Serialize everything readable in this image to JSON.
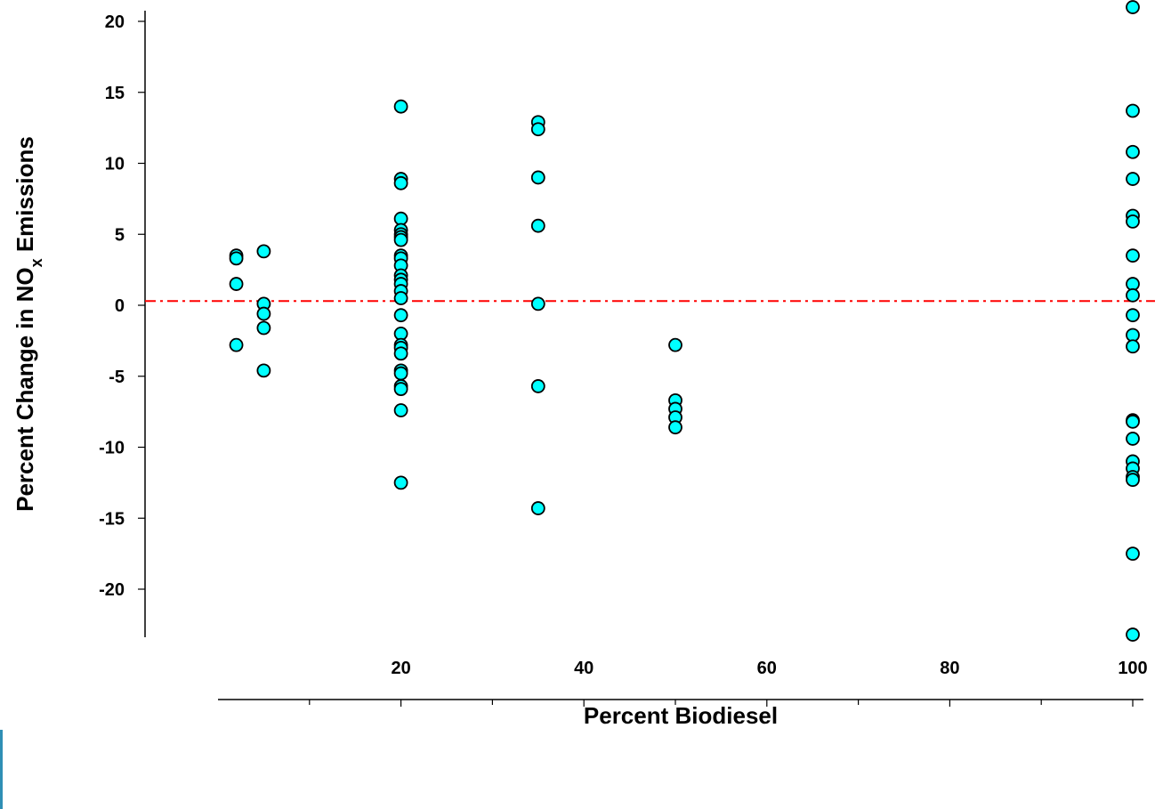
{
  "chart_data": {
    "type": "scatter",
    "xlabel": "Percent Biodiesel",
    "ylabel_parts": {
      "before": "Percent Change in NO",
      "subscript": "x",
      "after": " Emissions"
    },
    "xlim": [
      0,
      100
    ],
    "ylim": [
      -23,
      21
    ],
    "x_ticks": [
      20,
      40,
      60,
      80,
      100
    ],
    "x_minor_ticks": [
      10,
      30,
      50,
      70,
      90
    ],
    "y_ticks": [
      -20,
      -15,
      -10,
      -5,
      0,
      5,
      10,
      15,
      20
    ],
    "reference_line": {
      "y": 0.3,
      "style": "dash-dot",
      "color": "#ff0000"
    },
    "marker_color": "#00ffff",
    "grid": false,
    "series": [
      {
        "points": [
          [
            2,
            3.5
          ],
          [
            2,
            3.3
          ],
          [
            2,
            1.5
          ],
          [
            2,
            -2.8
          ],
          [
            5,
            3.8
          ],
          [
            5,
            0.1
          ],
          [
            5,
            -0.6
          ],
          [
            5,
            -1.6
          ],
          [
            5,
            -4.6
          ],
          [
            20,
            14.0
          ],
          [
            20,
            8.9
          ],
          [
            20,
            8.6
          ],
          [
            20,
            6.1
          ],
          [
            20,
            5.3
          ],
          [
            20,
            5.0
          ],
          [
            20,
            4.8
          ],
          [
            20,
            4.6
          ],
          [
            20,
            3.5
          ],
          [
            20,
            3.3
          ],
          [
            20,
            2.8
          ],
          [
            20,
            2.1
          ],
          [
            20,
            1.8
          ],
          [
            20,
            1.5
          ],
          [
            20,
            1.0
          ],
          [
            20,
            0.5
          ],
          [
            20,
            -0.7
          ],
          [
            20,
            -2.0
          ],
          [
            20,
            -2.8
          ],
          [
            20,
            -3.0
          ],
          [
            20,
            -3.4
          ],
          [
            20,
            -4.6
          ],
          [
            20,
            -4.8
          ],
          [
            20,
            -5.7
          ],
          [
            20,
            -5.9
          ],
          [
            20,
            -7.4
          ],
          [
            20,
            -12.5
          ],
          [
            35,
            12.9
          ],
          [
            35,
            12.4
          ],
          [
            35,
            9.0
          ],
          [
            35,
            5.6
          ],
          [
            35,
            0.1
          ],
          [
            35,
            -5.7
          ],
          [
            35,
            -14.3
          ],
          [
            50,
            -2.8
          ],
          [
            50,
            -6.7
          ],
          [
            50,
            -7.3
          ],
          [
            50,
            -7.9
          ],
          [
            50,
            -8.6
          ],
          [
            100,
            21.0
          ],
          [
            100,
            13.7
          ],
          [
            100,
            10.8
          ],
          [
            100,
            8.9
          ],
          [
            100,
            6.3
          ],
          [
            100,
            5.9
          ],
          [
            100,
            3.5
          ],
          [
            100,
            1.5
          ],
          [
            100,
            0.7
          ],
          [
            100,
            -0.7
          ],
          [
            100,
            -2.1
          ],
          [
            100,
            -2.9
          ],
          [
            100,
            -8.1
          ],
          [
            100,
            -8.2
          ],
          [
            100,
            -9.4
          ],
          [
            100,
            -11.0
          ],
          [
            100,
            -11.5
          ],
          [
            100,
            -12.1
          ],
          [
            100,
            -12.3
          ],
          [
            100,
            -17.5
          ],
          [
            100,
            -23.2
          ]
        ]
      }
    ]
  }
}
